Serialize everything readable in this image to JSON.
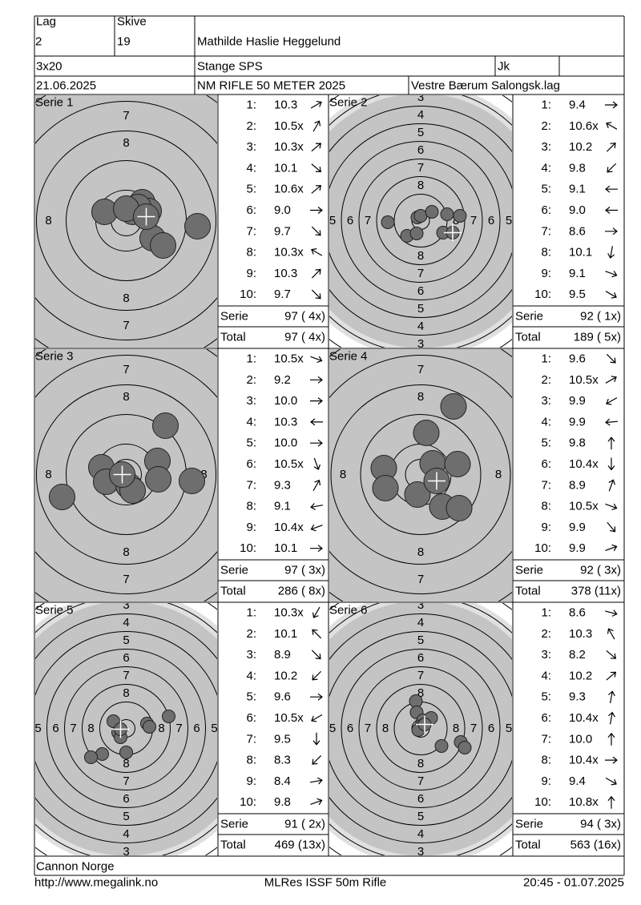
{
  "header": {
    "lag_label": "Lag",
    "lag": "2",
    "skive_label": "Skive",
    "skive": "19",
    "name": "Mathilde Haslie Heggelund",
    "class": "3x20",
    "club": "Stange SPS",
    "category": "Jk",
    "date": "21.06.2025",
    "competition": "NM RIFLE 50 METER 2025",
    "organizer": "Vestre Bærum Salongsk.lag"
  },
  "target_labels": {
    "zoom": [
      "7",
      "8"
    ],
    "full": [
      "3",
      "4",
      "5",
      "6",
      "7",
      "8"
    ]
  },
  "series": [
    {
      "title": "Serie 1",
      "shots": [
        {
          "n": "1:",
          "score": "10.3"
        },
        {
          "n": "2:",
          "score": "10.5x"
        },
        {
          "n": "3:",
          "score": "10.3x"
        },
        {
          "n": "4:",
          "score": "10.1"
        },
        {
          "n": "5:",
          "score": "10.6x"
        },
        {
          "n": "6:",
          "score": "9.0"
        },
        {
          "n": "7:",
          "score": "9.7"
        },
        {
          "n": "8:",
          "score": "10.3x"
        },
        {
          "n": "9:",
          "score": "10.3"
        },
        {
          "n": "10:",
          "score": "9.7"
        }
      ],
      "serie_label": "Serie",
      "serie_score": "97 ( 4x)",
      "total_label": "Total",
      "total_score": "97 ( 4x)"
    },
    {
      "title": "Serie 2",
      "shots": [
        {
          "n": "1:",
          "score": "9.4"
        },
        {
          "n": "2:",
          "score": "10.6x"
        },
        {
          "n": "3:",
          "score": "10.2"
        },
        {
          "n": "4:",
          "score": "9.8"
        },
        {
          "n": "5:",
          "score": "9.1"
        },
        {
          "n": "6:",
          "score": "9.0"
        },
        {
          "n": "7:",
          "score": "8.6"
        },
        {
          "n": "8:",
          "score": "10.1"
        },
        {
          "n": "9:",
          "score": "9.1"
        },
        {
          "n": "10:",
          "score": "9.5"
        }
      ],
      "serie_label": "Serie",
      "serie_score": "92 ( 1x)",
      "total_label": "Total",
      "total_score": "189 ( 5x)"
    },
    {
      "title": "Serie 3",
      "shots": [
        {
          "n": "1:",
          "score": "10.5x"
        },
        {
          "n": "2:",
          "score": "9.2"
        },
        {
          "n": "3:",
          "score": "10.0"
        },
        {
          "n": "4:",
          "score": "10.3"
        },
        {
          "n": "5:",
          "score": "10.0"
        },
        {
          "n": "6:",
          "score": "10.5x"
        },
        {
          "n": "7:",
          "score": "9.3"
        },
        {
          "n": "8:",
          "score": "9.1"
        },
        {
          "n": "9:",
          "score": "10.4x"
        },
        {
          "n": "10:",
          "score": "10.1"
        }
      ],
      "serie_label": "Serie",
      "serie_score": "97 ( 3x)",
      "total_label": "Total",
      "total_score": "286 ( 8x)"
    },
    {
      "title": "Serie 4",
      "shots": [
        {
          "n": "1:",
          "score": "9.6"
        },
        {
          "n": "2:",
          "score": "10.5x"
        },
        {
          "n": "3:",
          "score": "9.9"
        },
        {
          "n": "4:",
          "score": "9.9"
        },
        {
          "n": "5:",
          "score": "9.8"
        },
        {
          "n": "6:",
          "score": "10.4x"
        },
        {
          "n": "7:",
          "score": "8.9"
        },
        {
          "n": "8:",
          "score": "10.5x"
        },
        {
          "n": "9:",
          "score": "9.9"
        },
        {
          "n": "10:",
          "score": "9.9"
        }
      ],
      "serie_label": "Serie",
      "serie_score": "92 ( 3x)",
      "total_label": "Total",
      "total_score": "378 (11x)"
    },
    {
      "title": "Serie 5",
      "shots": [
        {
          "n": "1:",
          "score": "10.3x"
        },
        {
          "n": "2:",
          "score": "10.1"
        },
        {
          "n": "3:",
          "score": "8.9"
        },
        {
          "n": "4:",
          "score": "10.2"
        },
        {
          "n": "5:",
          "score": "9.6"
        },
        {
          "n": "6:",
          "score": "10.5x"
        },
        {
          "n": "7:",
          "score": "9.5"
        },
        {
          "n": "8:",
          "score": "8.3"
        },
        {
          "n": "9:",
          "score": "8.4"
        },
        {
          "n": "10:",
          "score": "9.8"
        }
      ],
      "serie_label": "Serie",
      "serie_score": "91 ( 2x)",
      "total_label": "Total",
      "total_score": "469 (13x)"
    },
    {
      "title": "Serie 6",
      "shots": [
        {
          "n": "1:",
          "score": "8.6"
        },
        {
          "n": "2:",
          "score": "10.3"
        },
        {
          "n": "3:",
          "score": "8.2"
        },
        {
          "n": "4:",
          "score": "10.2"
        },
        {
          "n": "5:",
          "score": "9.3"
        },
        {
          "n": "6:",
          "score": "10.4x"
        },
        {
          "n": "7:",
          "score": "10.0"
        },
        {
          "n": "8:",
          "score": "10.4x"
        },
        {
          "n": "9:",
          "score": "9.4"
        },
        {
          "n": "10:",
          "score": "10.8x"
        }
      ],
      "serie_label": "Serie",
      "serie_score": "94 ( 3x)",
      "total_label": "Total",
      "total_score": "563 (16x)"
    }
  ],
  "footer": {
    "team": "Cannon Norge",
    "url": "http://www.megalink.no",
    "software": "MLRes ISSF 50m Rifle",
    "timestamp": "20:45 - 01.07.2025"
  }
}
